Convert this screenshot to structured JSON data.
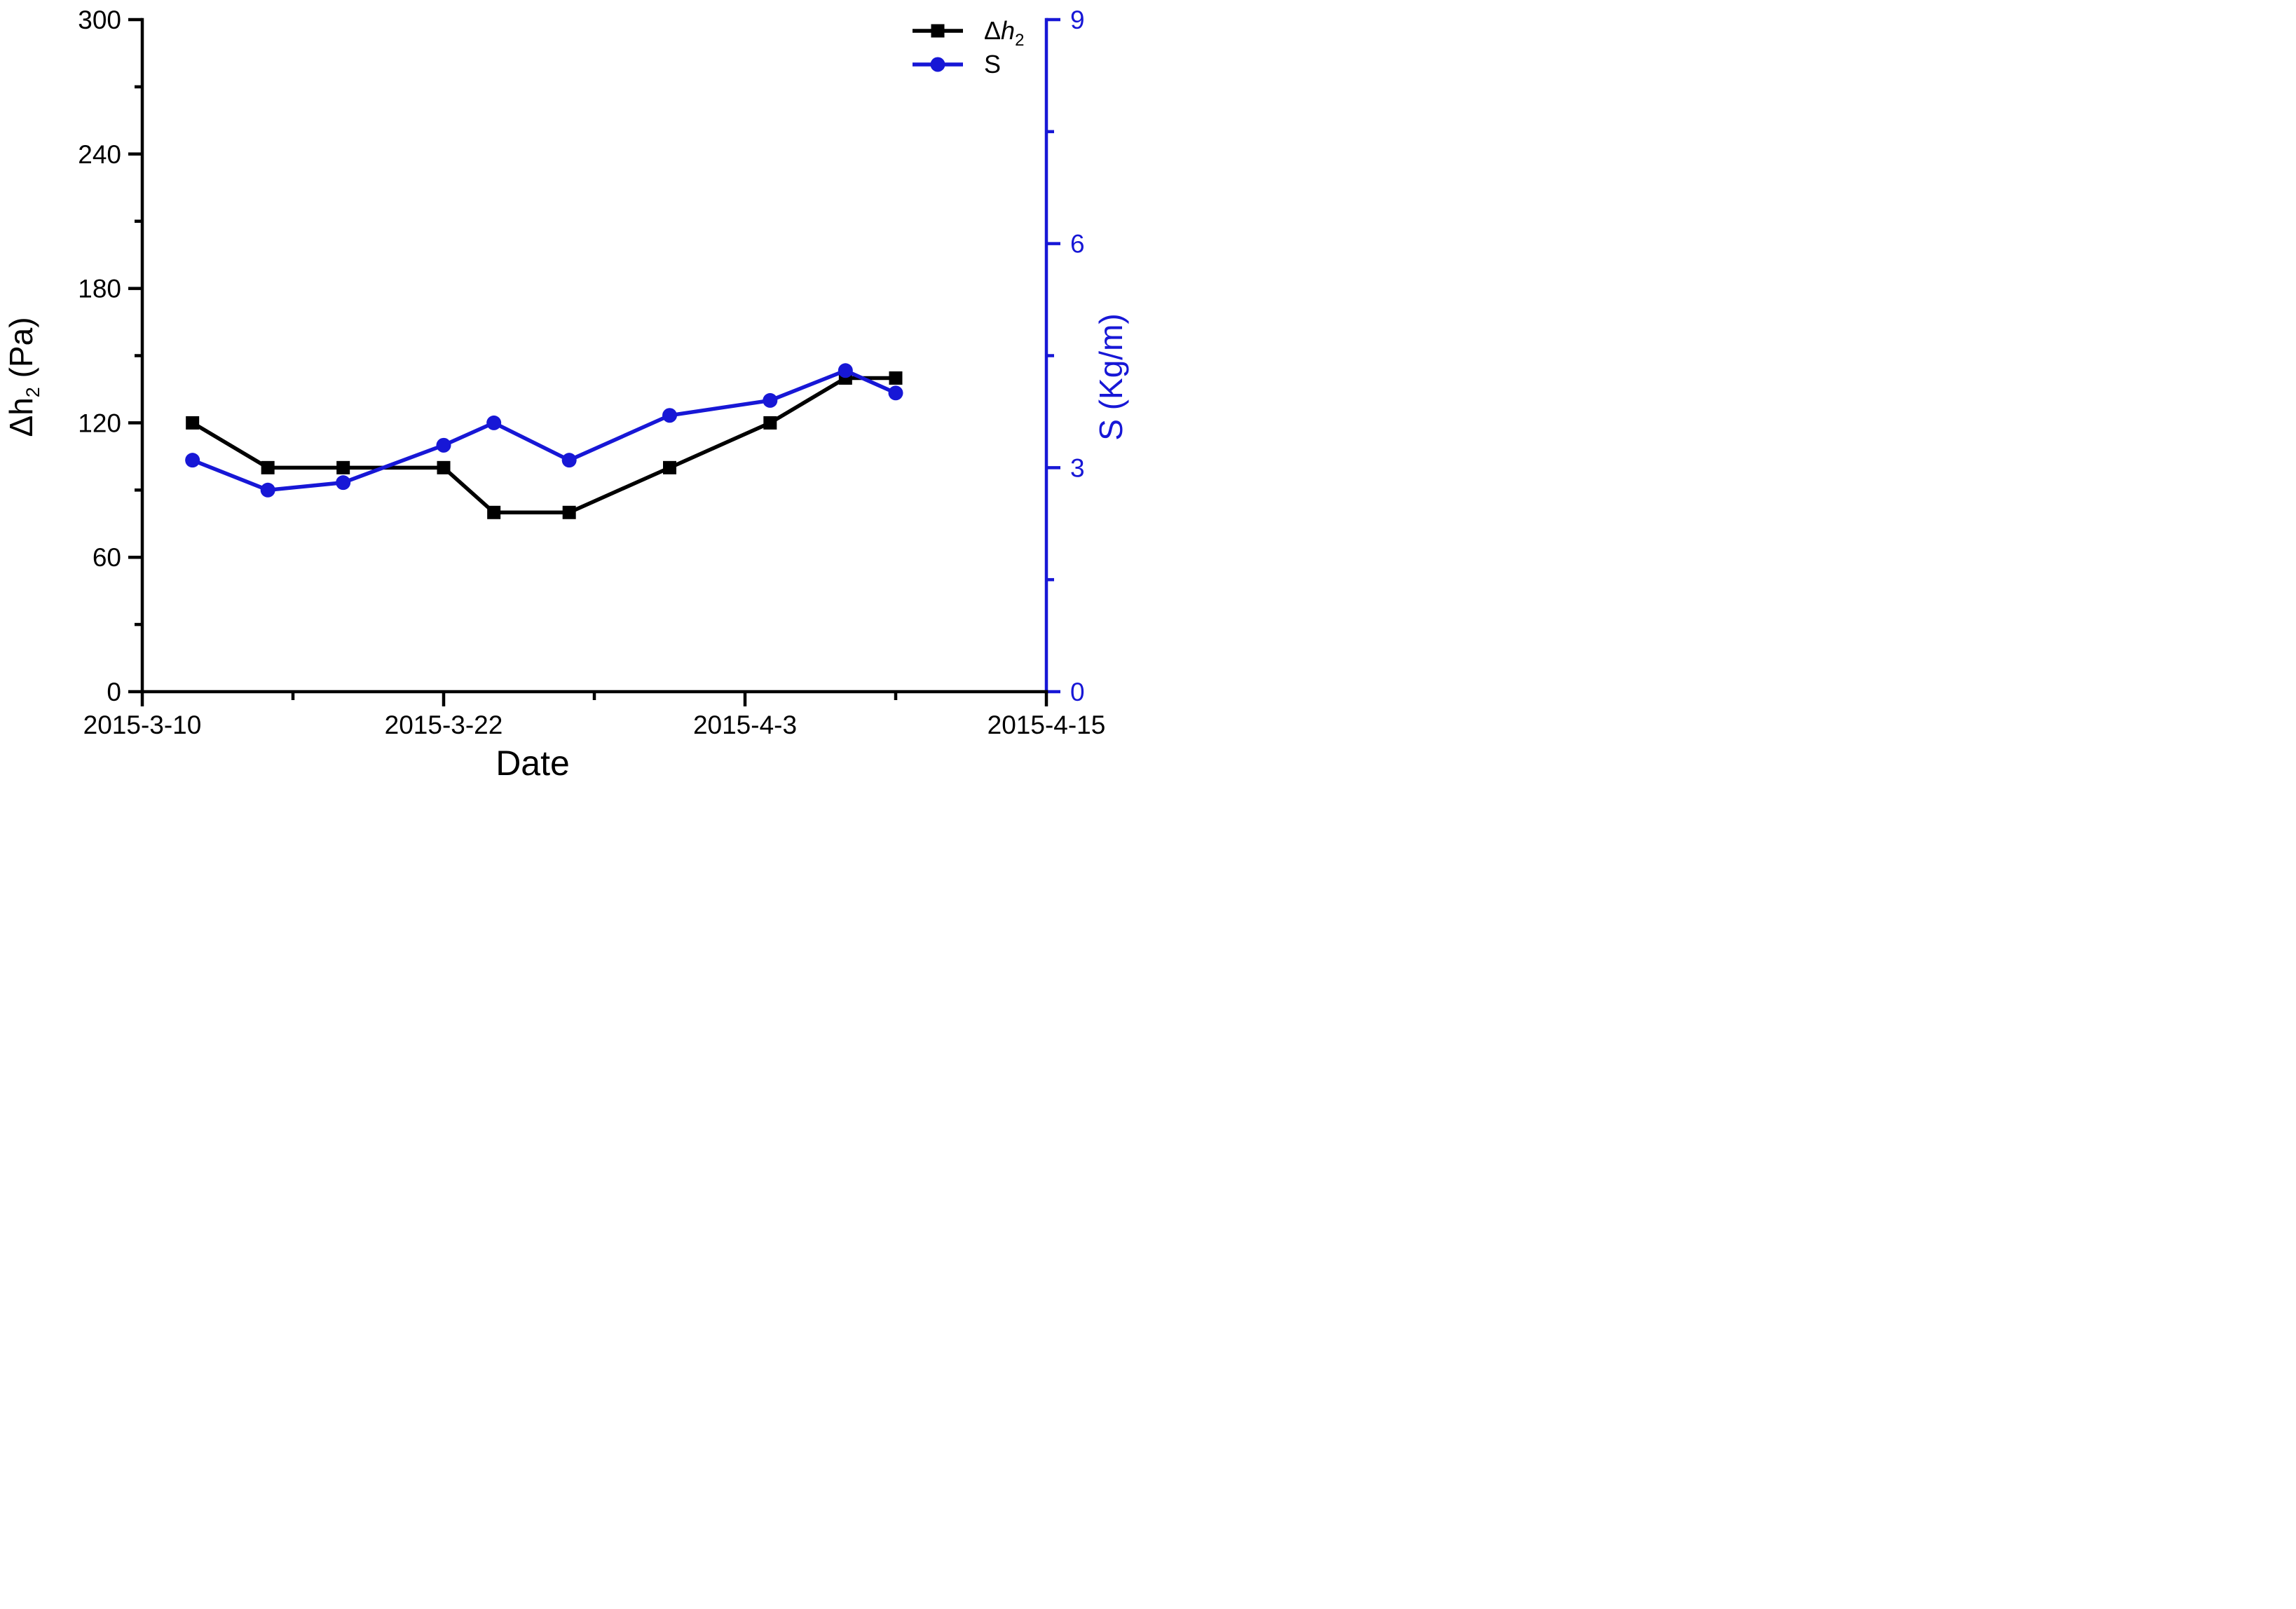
{
  "page": {
    "background": "#ffffff"
  },
  "chart_data": {
    "type": "line",
    "title": "",
    "legend_position": "top-right",
    "grid": false,
    "x_axis": {
      "title": "Date",
      "range_days": [
        0,
        36
      ],
      "major_tick_days": [
        0,
        12,
        24,
        36
      ],
      "major_tick_labels": [
        "2015-3-10",
        "2015-3-22",
        "2015-4-3",
        "2015-4-15"
      ],
      "minor_tick_days": [
        6,
        18,
        30
      ]
    },
    "y_left_axis": {
      "title_main": "Δh",
      "title_sub": "2",
      "title_unit": " (Pa)",
      "range": [
        0,
        300
      ],
      "major_ticks": [
        0,
        60,
        120,
        180,
        240,
        300
      ],
      "major_tick_labels": [
        "0",
        "60",
        "120",
        "180",
        "240",
        "300"
      ],
      "minor_ticks": [
        30,
        90,
        150,
        210,
        270
      ],
      "color": "#000000"
    },
    "y_right_axis": {
      "title": "S (Kg/m)",
      "range": [
        0,
        9
      ],
      "major_ticks": [
        0,
        3,
        6,
        9
      ],
      "major_tick_labels": [
        "0",
        "3",
        "6",
        "9"
      ],
      "minor_ticks": [
        1.5,
        4.5,
        7.5
      ],
      "color": "#1717d6"
    },
    "series": [
      {
        "name": "dh2",
        "legend_pre": "Δ",
        "legend_italic": "h",
        "legend_sub": "2",
        "axis": "left",
        "color": "#000000",
        "marker": "square",
        "dates": [
          "2015-3-12",
          "2015-3-15",
          "2015-3-18",
          "2015-3-22",
          "2015-3-24",
          "2015-3-27",
          "2015-3-31",
          "2015-4-4",
          "2015-4-7",
          "2015-4-9"
        ],
        "x_days": [
          2,
          5,
          8,
          12,
          14,
          17,
          21,
          25,
          28,
          30
        ],
        "values": [
          120,
          100,
          100,
          100,
          80,
          80,
          100,
          120,
          140,
          140
        ]
      },
      {
        "name": "S",
        "legend_pre": "S",
        "legend_italic": "",
        "legend_sub": "",
        "axis": "right",
        "color": "#1717d6",
        "marker": "circle",
        "dates": [
          "2015-3-12",
          "2015-3-15",
          "2015-3-18",
          "2015-3-22",
          "2015-3-24",
          "2015-3-27",
          "2015-3-31",
          "2015-4-4",
          "2015-4-7",
          "2015-4-9"
        ],
        "x_days": [
          2,
          5,
          8,
          12,
          14,
          17,
          21,
          25,
          28,
          30
        ],
        "values": [
          3.1,
          2.7,
          2.8,
          3.3,
          3.6,
          3.1,
          3.7,
          3.9,
          4.3,
          4.0
        ]
      }
    ]
  }
}
